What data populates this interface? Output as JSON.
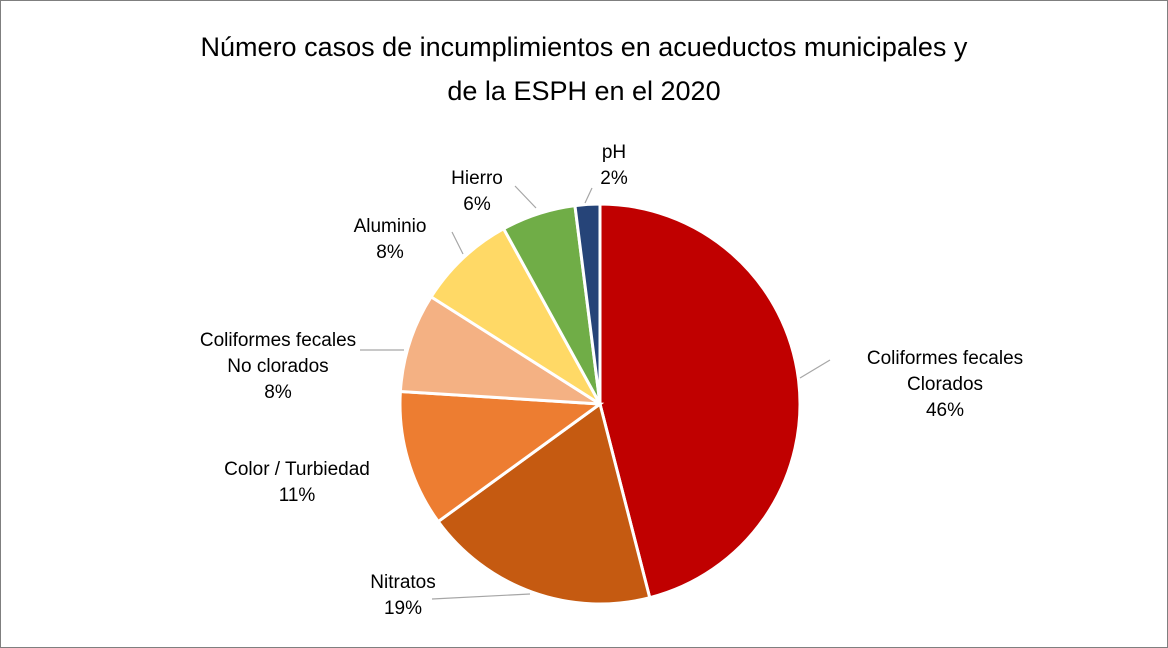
{
  "chart_data": {
    "type": "pie",
    "title": "Número casos de incumplimientos en acueductos municipales y\nde la ESPH en el 2020",
    "categories": [
      "Coliformes fecales\nClorados",
      "Nitratos",
      "Color / Turbiedad",
      "Coliformes fecales\nNo clorados",
      "Aluminio",
      "Hierro",
      "pH"
    ],
    "values": [
      46,
      19,
      11,
      8,
      8,
      6,
      2
    ],
    "value_labels": [
      "46%",
      "19%",
      "11%",
      "8%",
      "8%",
      "6%",
      "2%"
    ],
    "colors": [
      "#c00000",
      "#c55a11",
      "#ed7d31",
      "#f4b183",
      "#ffd966",
      "#70ad47",
      "#264478"
    ]
  }
}
